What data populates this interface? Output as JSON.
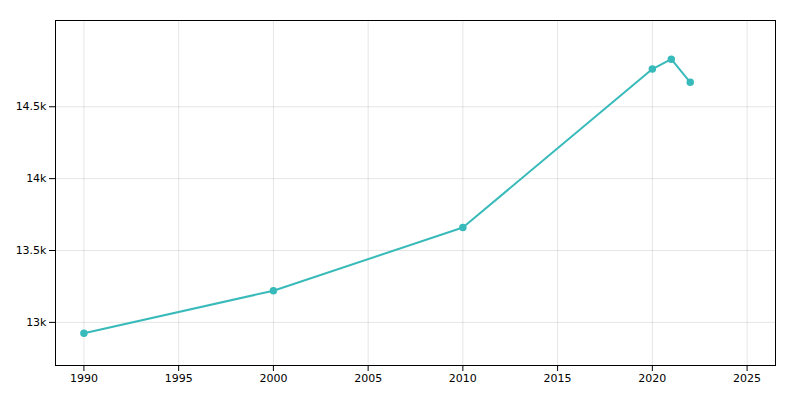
{
  "chart_data": {
    "type": "line",
    "x": [
      1990,
      2000,
      2010,
      2020,
      2021,
      2022
    ],
    "values": [
      12925,
      13220,
      13660,
      14762,
      14831,
      14670
    ],
    "color": "#39baba",
    "marker": "circle",
    "xlim": [
      1988.5,
      2026.5
    ],
    "ylim": [
      12700,
      15100
    ],
    "xticks": [
      1990,
      1995,
      2000,
      2005,
      2010,
      2015,
      2020,
      2025
    ],
    "yticks": [
      {
        "value": 13000,
        "label": "13k"
      },
      {
        "value": 13500,
        "label": "13.5k"
      },
      {
        "value": 14000,
        "label": "14k"
      },
      {
        "value": 14500,
        "label": "14.5k"
      }
    ],
    "grid": true
  }
}
